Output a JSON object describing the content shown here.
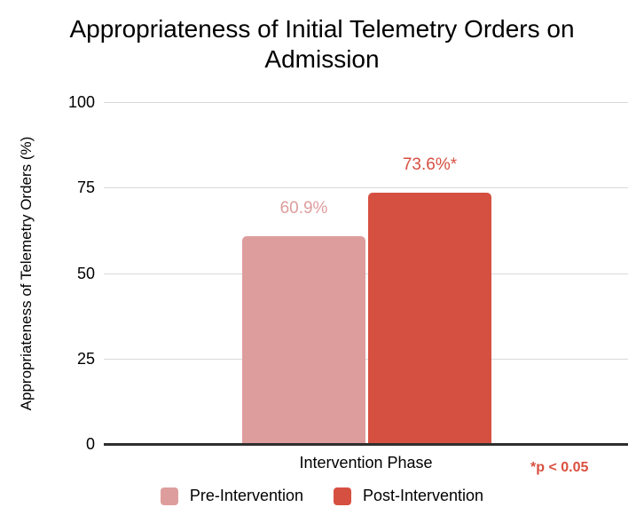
{
  "chart_data": {
    "type": "bar",
    "title": "Appropriateness of Initial Telemetry Orders on Admission",
    "xlabel": "Intervention Phase",
    "ylabel": "Appropriateness of Telemetry Orders (%)",
    "ylim": [
      0,
      100
    ],
    "yticks": [
      0,
      25,
      50,
      75,
      100
    ],
    "grid": true,
    "legend_position": "bottom",
    "categories": [
      "Intervention Phase"
    ],
    "series": [
      {
        "name": "Pre-Intervention",
        "values": [
          60.9
        ],
        "data_label": "60.9%",
        "color": "#DE9D9D"
      },
      {
        "name": "Post-Intervention",
        "values": [
          73.6
        ],
        "data_label": "73.6%*",
        "color": "#D65041"
      }
    ],
    "annotation": "*p < 0.05",
    "annotation_color": "#D9503F",
    "gridline_color": "#D9D9D9",
    "axis_line_color": "#2F2F2F"
  }
}
